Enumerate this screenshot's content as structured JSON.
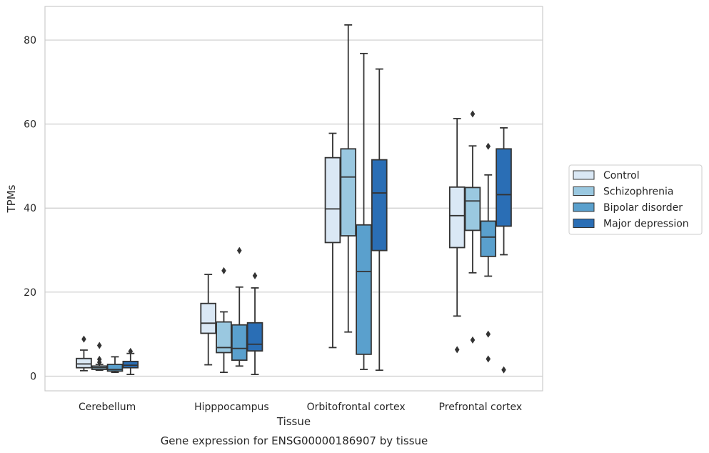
{
  "caption": "Gene expression for ENSG00000186907 by tissue",
  "chart_data": {
    "type": "box",
    "xlabel": "Tissue",
    "ylabel": "TPMs",
    "ylim": [
      -3.5,
      88
    ],
    "yticks": [
      0,
      20,
      40,
      60,
      80
    ],
    "grid": "horizontal",
    "legend_position": "right",
    "categories": [
      "Cerebellum",
      "Hipppocampus",
      "Orbitofrontal cortex",
      "Prefrontal cortex"
    ],
    "series": [
      {
        "name": "Control",
        "color": "#dae8f5",
        "boxes": [
          {
            "whisker_low": 1.3,
            "q1": 2.0,
            "median": 2.9,
            "q3": 4.2,
            "whisker_high": 6.2,
            "outliers": [
              8.8
            ]
          },
          {
            "whisker_low": 2.7,
            "q1": 10.2,
            "median": 12.6,
            "q3": 17.3,
            "whisker_high": 24.2,
            "outliers": []
          },
          {
            "whisker_low": 6.8,
            "q1": 31.8,
            "median": 39.8,
            "q3": 52.0,
            "whisker_high": 57.8,
            "outliers": []
          },
          {
            "whisker_low": 14.3,
            "q1": 30.6,
            "median": 38.2,
            "q3": 45.0,
            "whisker_high": 61.3,
            "outliers": [
              6.3
            ]
          }
        ]
      },
      {
        "name": "Schizophrenia",
        "color": "#9ac8e0",
        "boxes": [
          {
            "whisker_low": 1.4,
            "q1": 1.6,
            "median": 2.0,
            "q3": 2.4,
            "whisker_high": 2.8,
            "outliers": [
              7.3,
              4.0,
              3.3
            ]
          },
          {
            "whisker_low": 0.9,
            "q1": 5.6,
            "median": 6.8,
            "q3": 12.9,
            "whisker_high": 15.3,
            "outliers": [
              25.1
            ]
          },
          {
            "whisker_low": 10.5,
            "q1": 33.4,
            "median": 47.4,
            "q3": 54.1,
            "whisker_high": 83.6,
            "outliers": []
          },
          {
            "whisker_low": 24.6,
            "q1": 34.7,
            "median": 41.7,
            "q3": 44.9,
            "whisker_high": 54.8,
            "outliers": [
              62.4,
              8.6
            ]
          }
        ]
      },
      {
        "name": "Bipolar disorder",
        "color": "#5aa0cd",
        "boxes": [
          {
            "whisker_low": 0.9,
            "q1": 1.2,
            "median": 1.6,
            "q3": 2.8,
            "whisker_high": 4.6,
            "outliers": []
          },
          {
            "whisker_low": 2.4,
            "q1": 3.8,
            "median": 6.6,
            "q3": 12.2,
            "whisker_high": 21.2,
            "outliers": [
              29.9
            ]
          },
          {
            "whisker_low": 1.6,
            "q1": 5.2,
            "median": 24.9,
            "q3": 36.0,
            "whisker_high": 76.8,
            "outliers": []
          },
          {
            "whisker_low": 23.8,
            "q1": 28.5,
            "median": 33.1,
            "q3": 36.9,
            "whisker_high": 47.9,
            "outliers": [
              54.7,
              10.0,
              4.1
            ]
          }
        ]
      },
      {
        "name": "Major depression",
        "color": "#2a6eb5",
        "boxes": [
          {
            "whisker_low": 0.4,
            "q1": 2.0,
            "median": 2.6,
            "q3": 3.5,
            "whisker_high": 5.4,
            "outliers": [
              5.9
            ]
          },
          {
            "whisker_low": 0.4,
            "q1": 6.0,
            "median": 7.6,
            "q3": 12.7,
            "whisker_high": 21.0,
            "outliers": [
              23.9
            ]
          },
          {
            "whisker_low": 1.4,
            "q1": 29.9,
            "median": 43.6,
            "q3": 51.5,
            "whisker_high": 73.1,
            "outliers": []
          },
          {
            "whisker_low": 28.9,
            "q1": 35.7,
            "median": 43.2,
            "q3": 54.1,
            "whisker_high": 59.1,
            "outliers": [
              1.5
            ]
          }
        ]
      }
    ]
  }
}
